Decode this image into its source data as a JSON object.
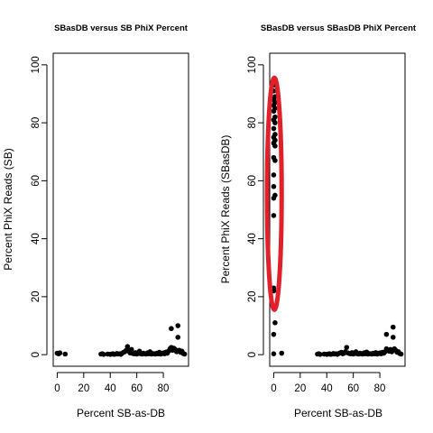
{
  "chart_data": [
    {
      "type": "scatter",
      "title": "SBasDB versus SB PhiX Percent",
      "xlabel": "Percent SB-as-DB",
      "ylabel": "Percent PhiX Reads (SB)",
      "xlim": [
        -3,
        99
      ],
      "ylim": [
        -4,
        104
      ],
      "xticks": [
        0,
        20,
        40,
        60,
        80
      ],
      "yticks": [
        0,
        20,
        40,
        60,
        80,
        100
      ],
      "grid": false,
      "point_color": "#000000",
      "points": [
        {
          "x": 0,
          "y": 0.5
        },
        {
          "x": 1,
          "y": 0.3
        },
        {
          "x": 2,
          "y": 0.6
        },
        {
          "x": 6,
          "y": 0.2
        },
        {
          "x": 33,
          "y": 0.2
        },
        {
          "x": 34,
          "y": 0.3
        },
        {
          "x": 35,
          "y": 0.1
        },
        {
          "x": 38,
          "y": 0.2
        },
        {
          "x": 40,
          "y": 0.1
        },
        {
          "x": 41,
          "y": 0.2
        },
        {
          "x": 42,
          "y": 0.3
        },
        {
          "x": 43,
          "y": 0.1
        },
        {
          "x": 44,
          "y": 0.2
        },
        {
          "x": 45,
          "y": 0.4
        },
        {
          "x": 46,
          "y": 0.2
        },
        {
          "x": 47,
          "y": 0.3
        },
        {
          "x": 48,
          "y": 0.1
        },
        {
          "x": 49,
          "y": 0.5
        },
        {
          "x": 50,
          "y": 0.8
        },
        {
          "x": 51,
          "y": 1.0
        },
        {
          "x": 52,
          "y": 1.5
        },
        {
          "x": 53,
          "y": 2.8
        },
        {
          "x": 54,
          "y": 1.2
        },
        {
          "x": 55,
          "y": 0.6
        },
        {
          "x": 56,
          "y": 1.8
        },
        {
          "x": 57,
          "y": 0.4
        },
        {
          "x": 58,
          "y": 0.3
        },
        {
          "x": 59,
          "y": 0.7
        },
        {
          "x": 60,
          "y": 0.2
        },
        {
          "x": 61,
          "y": 0.4
        },
        {
          "x": 62,
          "y": 1.2
        },
        {
          "x": 63,
          "y": 0.3
        },
        {
          "x": 64,
          "y": 0.2
        },
        {
          "x": 65,
          "y": 0.5
        },
        {
          "x": 66,
          "y": 0.3
        },
        {
          "x": 67,
          "y": 0.2
        },
        {
          "x": 68,
          "y": 0.6
        },
        {
          "x": 69,
          "y": 0.3
        },
        {
          "x": 70,
          "y": 1.0
        },
        {
          "x": 71,
          "y": 0.2
        },
        {
          "x": 72,
          "y": 0.4
        },
        {
          "x": 73,
          "y": 0.3
        },
        {
          "x": 74,
          "y": 0.2
        },
        {
          "x": 75,
          "y": 0.5
        },
        {
          "x": 76,
          "y": 0.3
        },
        {
          "x": 77,
          "y": 0.8
        },
        {
          "x": 78,
          "y": 0.2
        },
        {
          "x": 79,
          "y": 0.4
        },
        {
          "x": 80,
          "y": 0.6
        },
        {
          "x": 81,
          "y": 0.3
        },
        {
          "x": 82,
          "y": 0.9
        },
        {
          "x": 83,
          "y": 0.5
        },
        {
          "x": 84,
          "y": 1.2
        },
        {
          "x": 85,
          "y": 2.0
        },
        {
          "x": 86,
          "y": 2.5
        },
        {
          "x": 86,
          "y": 9.0
        },
        {
          "x": 87,
          "y": 1.5
        },
        {
          "x": 88,
          "y": 2.2
        },
        {
          "x": 89,
          "y": 1.8
        },
        {
          "x": 90,
          "y": 1.0
        },
        {
          "x": 91,
          "y": 10.0
        },
        {
          "x": 91,
          "y": 6.0
        },
        {
          "x": 92,
          "y": 1.5
        },
        {
          "x": 93,
          "y": 0.8
        },
        {
          "x": 94,
          "y": 1.2
        },
        {
          "x": 95,
          "y": 0.4
        },
        {
          "x": 96,
          "y": 0.2
        }
      ]
    },
    {
      "type": "scatter",
      "title": "SBasDB versus SBasDB PhiX Percent",
      "xlabel": "Percent SB-as-DB",
      "ylabel": "Percent PhiX Reads (SBasDB)",
      "xlim": [
        -3,
        99
      ],
      "ylim": [
        -4,
        104
      ],
      "xticks": [
        0,
        20,
        40,
        60,
        80
      ],
      "yticks": [
        0,
        20,
        40,
        60,
        80,
        100
      ],
      "grid": false,
      "point_color": "#000000",
      "highlight": {
        "shape": "ellipse",
        "color": "#e0202a",
        "center": [
          0.5,
          55.5
        ],
        "radius": [
          5.5,
          40
        ]
      },
      "points": [
        {
          "x": 0,
          "y": 93
        },
        {
          "x": 0,
          "y": 91
        },
        {
          "x": 1,
          "y": 89
        },
        {
          "x": 0,
          "y": 88
        },
        {
          "x": 1,
          "y": 87
        },
        {
          "x": 0,
          "y": 86
        },
        {
          "x": 1,
          "y": 85
        },
        {
          "x": 0,
          "y": 84
        },
        {
          "x": 1,
          "y": 82
        },
        {
          "x": 0,
          "y": 81
        },
        {
          "x": 1,
          "y": 80
        },
        {
          "x": 0,
          "y": 78
        },
        {
          "x": 1,
          "y": 76
        },
        {
          "x": 0,
          "y": 75
        },
        {
          "x": 1,
          "y": 74
        },
        {
          "x": 0,
          "y": 73
        },
        {
          "x": 1,
          "y": 72
        },
        {
          "x": 0,
          "y": 68
        },
        {
          "x": 1,
          "y": 67
        },
        {
          "x": 0,
          "y": 62
        },
        {
          "x": 0,
          "y": 58
        },
        {
          "x": 1,
          "y": 55
        },
        {
          "x": 0,
          "y": 54
        },
        {
          "x": 0,
          "y": 48
        },
        {
          "x": 0,
          "y": 23
        },
        {
          "x": 0,
          "y": 22
        },
        {
          "x": 1,
          "y": 11
        },
        {
          "x": 0,
          "y": 7
        },
        {
          "x": 0,
          "y": 0.3
        },
        {
          "x": 6,
          "y": 0.5
        },
        {
          "x": 33,
          "y": 0.2
        },
        {
          "x": 34,
          "y": 0.3
        },
        {
          "x": 35,
          "y": 0.1
        },
        {
          "x": 38,
          "y": 0.2
        },
        {
          "x": 40,
          "y": 0.1
        },
        {
          "x": 41,
          "y": 0.2
        },
        {
          "x": 42,
          "y": 0.3
        },
        {
          "x": 43,
          "y": 0.1
        },
        {
          "x": 44,
          "y": 0.2
        },
        {
          "x": 45,
          "y": 0.4
        },
        {
          "x": 46,
          "y": 0.2
        },
        {
          "x": 47,
          "y": 0.3
        },
        {
          "x": 48,
          "y": 0.1
        },
        {
          "x": 49,
          "y": 0.4
        },
        {
          "x": 50,
          "y": 0.6
        },
        {
          "x": 51,
          "y": 0.8
        },
        {
          "x": 52,
          "y": 0.3
        },
        {
          "x": 53,
          "y": 0.5
        },
        {
          "x": 54,
          "y": 1.0
        },
        {
          "x": 55,
          "y": 2.5
        },
        {
          "x": 56,
          "y": 0.6
        },
        {
          "x": 57,
          "y": 0.4
        },
        {
          "x": 58,
          "y": 0.3
        },
        {
          "x": 59,
          "y": 0.7
        },
        {
          "x": 60,
          "y": 0.2
        },
        {
          "x": 61,
          "y": 0.4
        },
        {
          "x": 62,
          "y": 1.0
        },
        {
          "x": 63,
          "y": 0.3
        },
        {
          "x": 64,
          "y": 0.2
        },
        {
          "x": 65,
          "y": 0.5
        },
        {
          "x": 66,
          "y": 0.3
        },
        {
          "x": 67,
          "y": 0.2
        },
        {
          "x": 68,
          "y": 0.6
        },
        {
          "x": 69,
          "y": 0.3
        },
        {
          "x": 70,
          "y": 0.9
        },
        {
          "x": 71,
          "y": 0.2
        },
        {
          "x": 72,
          "y": 0.4
        },
        {
          "x": 73,
          "y": 0.3
        },
        {
          "x": 74,
          "y": 0.2
        },
        {
          "x": 75,
          "y": 0.5
        },
        {
          "x": 76,
          "y": 0.3
        },
        {
          "x": 77,
          "y": 0.7
        },
        {
          "x": 78,
          "y": 0.2
        },
        {
          "x": 79,
          "y": 0.4
        },
        {
          "x": 80,
          "y": 0.6
        },
        {
          "x": 81,
          "y": 0.3
        },
        {
          "x": 82,
          "y": 0.8
        },
        {
          "x": 83,
          "y": 0.5
        },
        {
          "x": 84,
          "y": 1.0
        },
        {
          "x": 85,
          "y": 2.0
        },
        {
          "x": 85,
          "y": 7.0
        },
        {
          "x": 86,
          "y": 1.5
        },
        {
          "x": 87,
          "y": 1.2
        },
        {
          "x": 88,
          "y": 1.8
        },
        {
          "x": 89,
          "y": 1.0
        },
        {
          "x": 90,
          "y": 9.5
        },
        {
          "x": 90,
          "y": 6.0
        },
        {
          "x": 91,
          "y": 2.0
        },
        {
          "x": 92,
          "y": 1.5
        },
        {
          "x": 93,
          "y": 0.8
        },
        {
          "x": 94,
          "y": 1.0
        },
        {
          "x": 95,
          "y": 0.4
        },
        {
          "x": 96,
          "y": 0.2
        }
      ]
    }
  ]
}
